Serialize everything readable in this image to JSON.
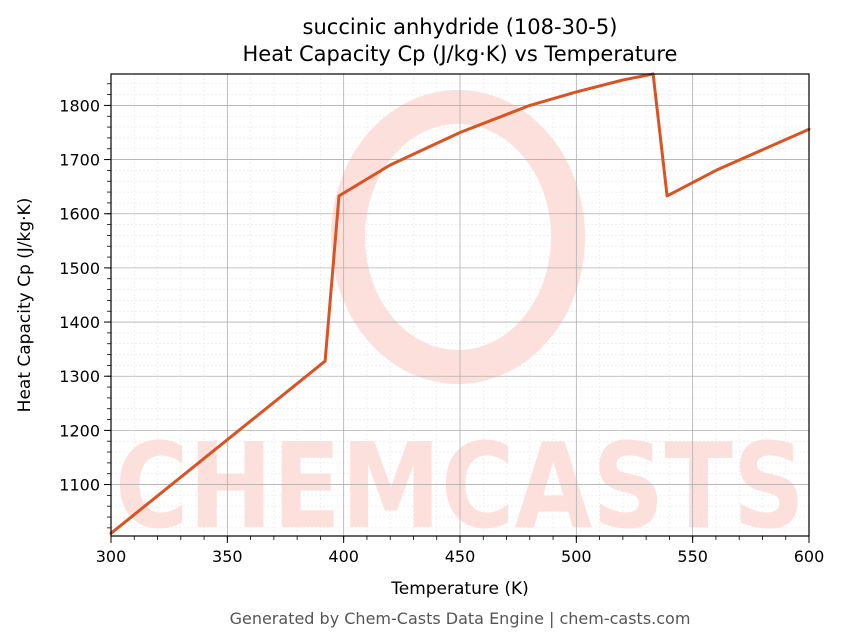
{
  "chart_data": {
    "type": "line",
    "title": "succinic anhydride (108-30-5)",
    "subtitle": "Heat Capacity Cp (J/kg·K) vs Temperature",
    "xlabel": "Temperature (K)",
    "ylabel": "Heat Capacity Cp (J/kg·K)",
    "xlim": [
      300,
      600
    ],
    "ylim": [
      1005,
      1858
    ],
    "x_ticks": [
      300,
      350,
      400,
      450,
      500,
      550,
      600
    ],
    "y_ticks": [
      1100,
      1200,
      1300,
      1400,
      1500,
      1600,
      1700,
      1800
    ],
    "grid": true,
    "legend": "none",
    "series": [
      {
        "color": "#d95323",
        "x": [
          300,
          392,
          398,
          420,
          450,
          480,
          500,
          520,
          533,
          539,
          560,
          580,
          600
        ],
        "y": [
          1010,
          1328,
          1633,
          1690,
          1750,
          1800,
          1825,
          1847,
          1858,
          1633,
          1680,
          1718,
          1756
        ]
      }
    ]
  },
  "watermark": {
    "text": "CHEMCASTS",
    "color": "#fde0dc"
  },
  "footer": "Generated by Chem-Casts Data Engine | chem-casts.com"
}
